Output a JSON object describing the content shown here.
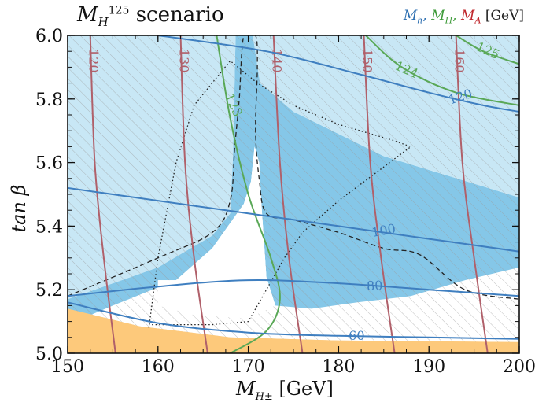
{
  "title": {
    "main": "M",
    "sub": "H",
    "sup": "125",
    "rest": " scenario"
  },
  "legend": {
    "mh": "M",
    "mh_sub": "h",
    "sep1": ",",
    "mH": "M",
    "mH_sub": "H",
    "sep2": ",",
    "mA": "M",
    "mA_sub": "A",
    "unit": "[GeV]",
    "colors": {
      "mh": "#2a6db0",
      "mH": "#3f9b3a",
      "mA": "#c0282d"
    }
  },
  "axes": {
    "xlabel_main": "M",
    "xlabel_sub": "H±",
    "xlabel_unit": " [GeV]",
    "ylabel": "tan β",
    "xlim": [
      150,
      200
    ],
    "ylim": [
      5.0,
      6.0
    ],
    "xticks": [
      "150",
      "160",
      "170",
      "180",
      "190",
      "200"
    ],
    "yticks": [
      "5.0",
      "5.2",
      "5.4",
      "5.6",
      "5.8",
      "6.0"
    ]
  },
  "chart_data": {
    "type": "contour",
    "title": "M_H^125 scenario",
    "xlabel": "M_H± [GeV]",
    "ylabel": "tan β",
    "xlim": [
      150,
      200
    ],
    "ylim": [
      5.0,
      6.0
    ],
    "regions": [
      {
        "name": "excluded-dark-blue",
        "color": "#85c7e8",
        "points": [
          [
            150,
            5.17
          ],
          [
            160,
            5.27
          ],
          [
            166,
            5.37
          ],
          [
            168,
            5.44
          ],
          [
            168.3,
            5.62
          ],
          [
            168.6,
            6.0
          ],
          [
            170.5,
            6.0
          ],
          [
            171.3,
            5.85
          ],
          [
            175,
            5.76
          ],
          [
            185,
            5.62
          ],
          [
            200,
            5.49
          ],
          [
            200,
            5.27
          ],
          [
            194,
            5.23
          ],
          [
            188,
            5.18
          ],
          [
            182,
            5.16
          ],
          [
            177,
            5.14
          ],
          [
            173,
            5.15
          ],
          [
            172,
            5.24
          ],
          [
            171.5,
            5.45
          ],
          [
            171.2,
            5.6
          ],
          [
            170.7,
            5.65
          ],
          [
            170.3,
            5.54
          ],
          [
            169.5,
            5.47
          ],
          [
            166,
            5.33
          ],
          [
            162,
            5.23
          ],
          [
            155,
            5.15
          ],
          [
            150,
            5.09
          ]
        ]
      },
      {
        "name": "excluded-light-blue",
        "color": "#c8e7f5",
        "points": [
          [
            150,
            5.17
          ],
          [
            150,
            6.0
          ],
          [
            200,
            6.0
          ],
          [
            200,
            5.49
          ],
          [
            185,
            5.62
          ],
          [
            175,
            5.76
          ],
          [
            171.3,
            5.85
          ],
          [
            170.5,
            6.0
          ],
          [
            168.6,
            6.0
          ],
          [
            168.3,
            5.62
          ],
          [
            168,
            5.44
          ],
          [
            166,
            5.37
          ],
          [
            160,
            5.27
          ]
        ]
      },
      {
        "name": "allowed-white",
        "color": "#ffffff",
        "points": [
          [
            160,
            5.23
          ],
          [
            162,
            5.23
          ],
          [
            166,
            5.33
          ],
          [
            169.5,
            5.47
          ],
          [
            170.3,
            5.54
          ],
          [
            170.7,
            5.65
          ],
          [
            171.2,
            5.6
          ],
          [
            171.5,
            5.45
          ],
          [
            172,
            5.24
          ],
          [
            173,
            5.15
          ],
          [
            170,
            5.11
          ],
          [
            164,
            5.12
          ],
          [
            160,
            5.15
          ]
        ]
      },
      {
        "name": "orange-band",
        "color": "#fdc97b",
        "points": [
          [
            150,
            5.0
          ],
          [
            150,
            5.14
          ],
          [
            158,
            5.085
          ],
          [
            168,
            5.05
          ],
          [
            180,
            5.04
          ],
          [
            200,
            5.035
          ],
          [
            200,
            5.0
          ]
        ]
      }
    ],
    "mh_contours": [
      {
        "label": "60",
        "points": [
          [
            150,
            5.16
          ],
          [
            160,
            5.095
          ],
          [
            170,
            5.065
          ],
          [
            180,
            5.055
          ],
          [
            190,
            5.05
          ],
          [
            200,
            5.045
          ]
        ]
      },
      {
        "label": "80",
        "points": [
          [
            150,
            5.18
          ],
          [
            160,
            5.21
          ],
          [
            170,
            5.23
          ],
          [
            180,
            5.22
          ],
          [
            190,
            5.2
          ],
          [
            200,
            5.18
          ]
        ]
      },
      {
        "label": "100",
        "points": [
          [
            150,
            5.52
          ],
          [
            160,
            5.48
          ],
          [
            170,
            5.44
          ],
          [
            180,
            5.4
          ],
          [
            190,
            5.36
          ],
          [
            200,
            5.32
          ]
        ]
      },
      {
        "label": "120",
        "points": [
          [
            160,
            6.0
          ],
          [
            172,
            5.95
          ],
          [
            182,
            5.88
          ],
          [
            190,
            5.82
          ],
          [
            196,
            5.78
          ],
          [
            200,
            5.76
          ]
        ]
      }
    ],
    "mH_contours": [
      {
        "label": "123",
        "points": [
          [
            166.5,
            6.0
          ],
          [
            168,
            5.74
          ],
          [
            170,
            5.5
          ],
          [
            172.5,
            5.3
          ],
          [
            173.5,
            5.17
          ],
          [
            172,
            5.07
          ],
          [
            168,
            5.0
          ]
        ]
      },
      {
        "label": "124",
        "points": [
          [
            183,
            6.0
          ],
          [
            187,
            5.9
          ],
          [
            193,
            5.82
          ],
          [
            200,
            5.78
          ]
        ]
      },
      {
        "label": "125",
        "points": [
          [
            193,
            6.0
          ],
          [
            196,
            5.95
          ],
          [
            200,
            5.91
          ]
        ]
      }
    ],
    "mA_contours": [
      {
        "label": "120",
        "points": [
          [
            152.5,
            6.0
          ],
          [
            153,
            5.6
          ],
          [
            154,
            5.3
          ],
          [
            155.3,
            5.0
          ]
        ]
      },
      {
        "label": "130",
        "points": [
          [
            162.5,
            6.0
          ],
          [
            163,
            5.6
          ],
          [
            164,
            5.3
          ],
          [
            165.5,
            5.0
          ]
        ]
      },
      {
        "label": "140",
        "points": [
          [
            172.8,
            6.0
          ],
          [
            173.5,
            5.6
          ],
          [
            174.5,
            5.3
          ],
          [
            176,
            5.0
          ]
        ]
      },
      {
        "label": "150",
        "points": [
          [
            182.8,
            6.0
          ],
          [
            183.5,
            5.6
          ],
          [
            184.7,
            5.3
          ],
          [
            186.2,
            5.0
          ]
        ]
      },
      {
        "label": "160",
        "points": [
          [
            193,
            6.0
          ],
          [
            193.7,
            5.6
          ],
          [
            195,
            5.3
          ],
          [
            196.5,
            5.0
          ]
        ]
      }
    ],
    "dashed_boundary": [
      [
        150,
        5.18
      ],
      [
        160,
        5.3
      ],
      [
        166,
        5.38
      ],
      [
        168,
        5.48
      ],
      [
        168.5,
        5.65
      ],
      [
        169,
        5.8
      ],
      [
        169.5,
        6.0
      ],
      [
        170.8,
        6.0
      ],
      [
        171,
        5.9
      ],
      [
        170.8,
        5.7
      ],
      [
        171.2,
        5.55
      ],
      [
        172,
        5.44
      ],
      [
        175,
        5.42
      ],
      [
        180,
        5.38
      ],
      [
        185,
        5.33
      ],
      [
        189,
        5.31
      ],
      [
        194,
        5.2
      ],
      [
        200,
        5.17
      ]
    ],
    "dotted_boundary": [
      [
        159,
        5.08
      ],
      [
        160,
        5.3
      ],
      [
        162,
        5.6
      ],
      [
        164,
        5.78
      ],
      [
        168,
        5.92
      ],
      [
        171,
        5.85
      ],
      [
        175,
        5.78
      ],
      [
        180,
        5.72
      ],
      [
        186,
        5.67
      ],
      [
        188,
        5.65
      ],
      [
        180,
        5.48
      ],
      [
        176,
        5.38
      ],
      [
        174,
        5.3
      ],
      [
        172,
        5.2
      ],
      [
        170,
        5.1
      ],
      [
        166,
        5.09
      ],
      [
        159,
        5.09
      ]
    ]
  }
}
